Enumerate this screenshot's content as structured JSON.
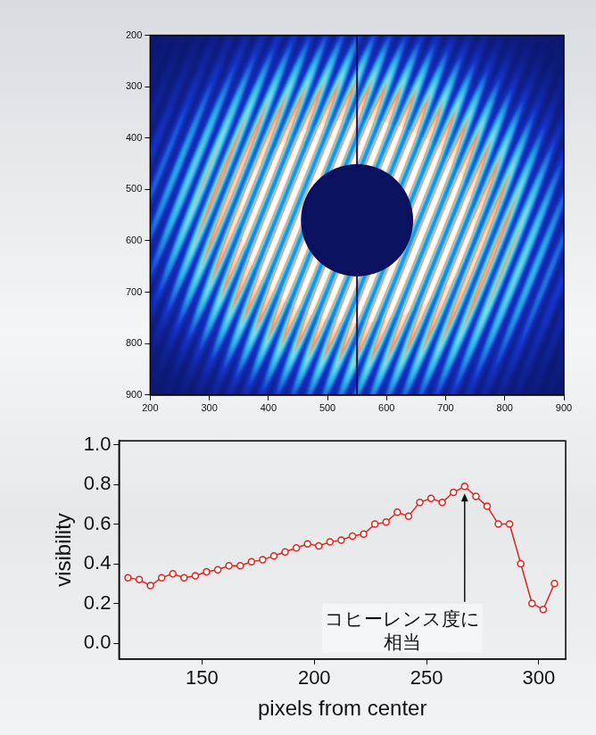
{
  "chart_data": [
    {
      "type": "image",
      "xlim": [
        200,
        900
      ],
      "ylim": [
        900,
        200
      ],
      "xticks": [
        200,
        300,
        400,
        500,
        600,
        700,
        800,
        900
      ],
      "yticks": [
        200,
        300,
        400,
        500,
        600,
        700,
        800,
        900
      ],
      "grid": false,
      "beamstop": {
        "x": 550,
        "y": 560,
        "radius": 95
      },
      "pattern_radius": 330
    },
    {
      "type": "line",
      "xlabel": "pixels from center",
      "ylabel": "visibility",
      "x": [
        117,
        122,
        127,
        132,
        137,
        142,
        147,
        152,
        157,
        162,
        167,
        172,
        177,
        182,
        187,
        192,
        197,
        202,
        207,
        212,
        217,
        222,
        227,
        232,
        237,
        242,
        247,
        252,
        257,
        262,
        267,
        272,
        277,
        282,
        287,
        292,
        297,
        302,
        307
      ],
      "values": [
        0.33,
        0.32,
        0.29,
        0.33,
        0.35,
        0.33,
        0.34,
        0.36,
        0.37,
        0.39,
        0.39,
        0.41,
        0.42,
        0.44,
        0.46,
        0.48,
        0.5,
        0.49,
        0.51,
        0.52,
        0.54,
        0.55,
        0.6,
        0.61,
        0.66,
        0.64,
        0.71,
        0.73,
        0.71,
        0.76,
        0.79,
        0.74,
        0.69,
        0.6,
        0.6,
        0.4,
        0.2,
        0.17,
        0.3
      ],
      "color": "#e3231c",
      "marker": "open_circle",
      "xlim": [
        113,
        312
      ],
      "ylim": [
        -0.08,
        1.02
      ],
      "xticks": [
        150,
        200,
        250,
        300
      ],
      "yticks": [
        {
          "value": 0,
          "label": "0.0"
        },
        {
          "value": 0.2,
          "label": "0.2"
        },
        {
          "value": 0.4,
          "label": "0.4"
        },
        {
          "value": 0.6,
          "label": "0.6"
        },
        {
          "value": 0.8,
          "label": "0.8"
        },
        {
          "value": 1,
          "label": "1.0"
        }
      ],
      "grid": false,
      "annotation": {
        "text": "コヒーレンス度に\n相当",
        "x": 267,
        "y": 0.79
      }
    }
  ]
}
